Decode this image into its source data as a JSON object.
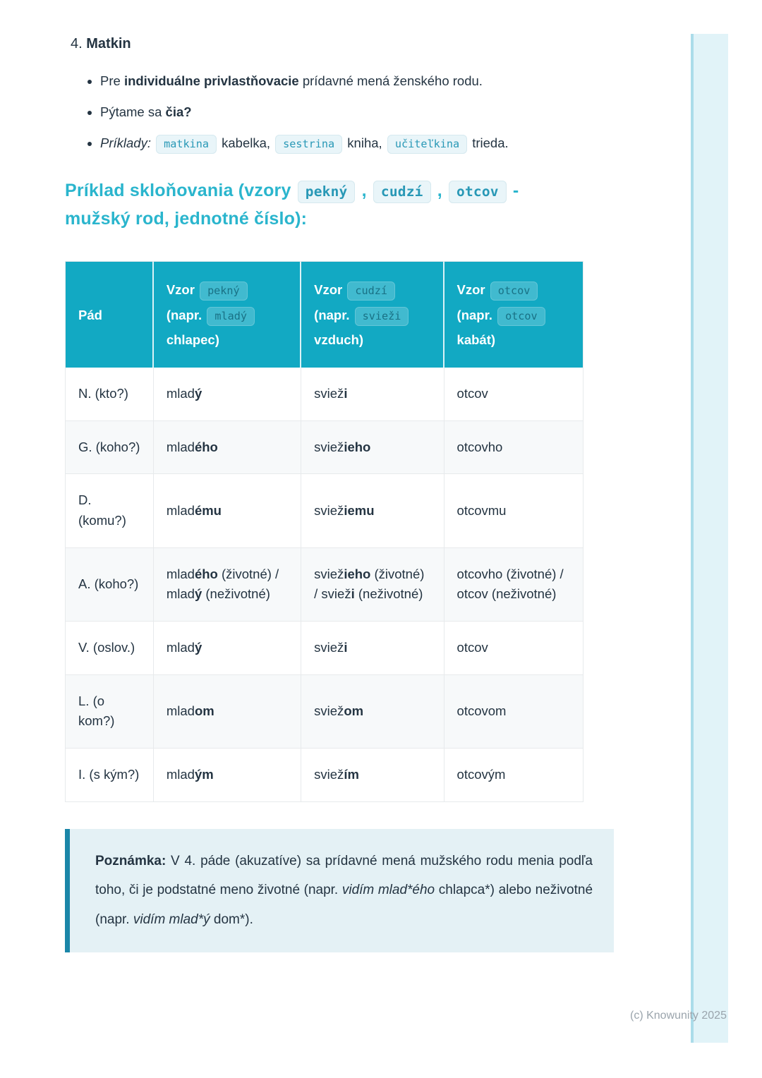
{
  "section": {
    "number": "4.",
    "title": "Matkin",
    "bullets": [
      {
        "parts": [
          {
            "t": "Pre "
          },
          {
            "t": "individuálne privlastňovacie",
            "b": true
          },
          {
            "t": " prídavné mená ženského rodu."
          }
        ]
      },
      {
        "parts": [
          {
            "t": "Pýtame sa "
          },
          {
            "t": "čia?",
            "b": true
          }
        ]
      },
      {
        "parts": [
          {
            "t": "Príklady",
            "i": true
          },
          {
            "t": ": ",
            "i": true
          },
          {
            "t": "matkina",
            "code": true
          },
          {
            "t": " kabelka, "
          },
          {
            "t": "sestrina",
            "code": true
          },
          {
            "t": " kniha, "
          },
          {
            "t": "učiteľkina",
            "code": true
          },
          {
            "t": " trieda."
          }
        ]
      }
    ]
  },
  "heading": {
    "parts": [
      {
        "t": "Príklad skloňovania (vzory "
      },
      {
        "t": "pekný",
        "code": true
      },
      {
        "t": " , "
      },
      {
        "t": "cudzí",
        "code": true
      },
      {
        "t": " , "
      },
      {
        "t": "otcov",
        "code": true
      },
      {
        "t": " -"
      },
      {
        "br": true
      },
      {
        "t": "mužský rod, jednotné číslo):"
      }
    ]
  },
  "table": {
    "headers": [
      {
        "parts": [
          {
            "t": "Pád"
          }
        ]
      },
      {
        "parts": [
          {
            "t": "Vzor "
          },
          {
            "t": "pekný",
            "code": true
          },
          {
            "t": " (napr. "
          },
          {
            "t": "mladý",
            "code": true
          },
          {
            "t": " chlapec)"
          }
        ]
      },
      {
        "parts": [
          {
            "t": "Vzor "
          },
          {
            "t": "cudzí",
            "code": true
          },
          {
            "t": " (napr. "
          },
          {
            "t": "svieži",
            "code": true
          },
          {
            "t": " vzduch)"
          }
        ]
      },
      {
        "parts": [
          {
            "t": "Vzor "
          },
          {
            "t": "otcov",
            "code": true
          },
          {
            "t": " (napr. "
          },
          {
            "t": "otcov",
            "code": true
          },
          {
            "t": " kabát)"
          }
        ]
      }
    ],
    "rows": [
      {
        "label": "N. (kto?)",
        "cells": [
          {
            "parts": [
              {
                "t": "mlad"
              },
              {
                "t": "ý",
                "b": true
              }
            ]
          },
          {
            "parts": [
              {
                "t": "sviež"
              },
              {
                "t": "i",
                "b": true
              }
            ]
          },
          {
            "parts": [
              {
                "t": "otcov"
              }
            ]
          }
        ]
      },
      {
        "label": "G. (koho?)",
        "cells": [
          {
            "parts": [
              {
                "t": "mlad"
              },
              {
                "t": "ého",
                "b": true
              }
            ]
          },
          {
            "parts": [
              {
                "t": "sviež"
              },
              {
                "t": "ieho",
                "b": true
              }
            ]
          },
          {
            "parts": [
              {
                "t": "otcovho"
              }
            ]
          }
        ]
      },
      {
        "label": "D. (komu?)",
        "cells": [
          {
            "parts": [
              {
                "t": "mlad"
              },
              {
                "t": "ému",
                "b": true
              }
            ]
          },
          {
            "parts": [
              {
                "t": "sviež"
              },
              {
                "t": "iemu",
                "b": true
              }
            ]
          },
          {
            "parts": [
              {
                "t": "otcovmu"
              }
            ]
          }
        ]
      },
      {
        "label": "A. (koho?)",
        "cells": [
          {
            "parts": [
              {
                "t": "mlad"
              },
              {
                "t": "ého",
                "b": true
              },
              {
                "t": " (životné) / mlad"
              },
              {
                "t": "ý",
                "b": true
              },
              {
                "t": " (neživotné)"
              }
            ]
          },
          {
            "parts": [
              {
                "t": "sviež"
              },
              {
                "t": "ieho",
                "b": true
              },
              {
                "t": " (životné) / sviež"
              },
              {
                "t": "i",
                "b": true
              },
              {
                "t": " (neživotné)"
              }
            ]
          },
          {
            "parts": [
              {
                "t": "otcovho (životné) / otcov (neživotné)"
              }
            ]
          }
        ]
      },
      {
        "label": "V. (oslov.)",
        "cells": [
          {
            "parts": [
              {
                "t": "mlad"
              },
              {
                "t": "ý",
                "b": true
              }
            ]
          },
          {
            "parts": [
              {
                "t": "sviež"
              },
              {
                "t": "i",
                "b": true
              }
            ]
          },
          {
            "parts": [
              {
                "t": "otcov"
              }
            ]
          }
        ]
      },
      {
        "label": "L. (o kom?)",
        "cells": [
          {
            "parts": [
              {
                "t": "mlad"
              },
              {
                "t": "om",
                "b": true
              }
            ]
          },
          {
            "parts": [
              {
                "t": "sviež"
              },
              {
                "t": "om",
                "b": true
              }
            ]
          },
          {
            "parts": [
              {
                "t": "otcovom"
              }
            ]
          }
        ]
      },
      {
        "label": "I. (s kým?)",
        "cells": [
          {
            "parts": [
              {
                "t": "mlad"
              },
              {
                "t": "ým",
                "b": true
              }
            ]
          },
          {
            "parts": [
              {
                "t": "sviež"
              },
              {
                "t": "ím",
                "b": true
              }
            ]
          },
          {
            "parts": [
              {
                "t": "otcovým"
              }
            ]
          }
        ]
      }
    ]
  },
  "note": {
    "parts": [
      {
        "t": "Poznámka:",
        "b": true
      },
      {
        "t": " V 4. páde (akuzatíve) sa prídavné mená mužského rodu menia podľa toho, či je podstatné meno životné (napr. "
      },
      {
        "t": "vidím mlad*ého",
        "i": true
      },
      {
        "t": " chlapca*) alebo neživotné (napr. "
      },
      {
        "t": "vidím mlad*ý",
        "i": true
      },
      {
        "t": " dom*)."
      }
    ]
  },
  "footer": {
    "copyright": "(c) Knowunity 2025"
  },
  "colors": {
    "accent": "#2ab5cd",
    "table_header_bg": "#12a9c3",
    "code_text": "#2898b6",
    "code_bg": "#e9f5f9",
    "code_border": "#d6e9ef",
    "text_color": "#243442",
    "note_bg": "#e4f1f5",
    "note_border": "#1a86a8",
    "watermark_color": "#9aa4ac",
    "sidebar_bg": "#e1f3f8",
    "sidebar_edge": "#abdcea",
    "row_alt_bg": "#f7f9fa",
    "cell_border": "#e7eaec"
  }
}
